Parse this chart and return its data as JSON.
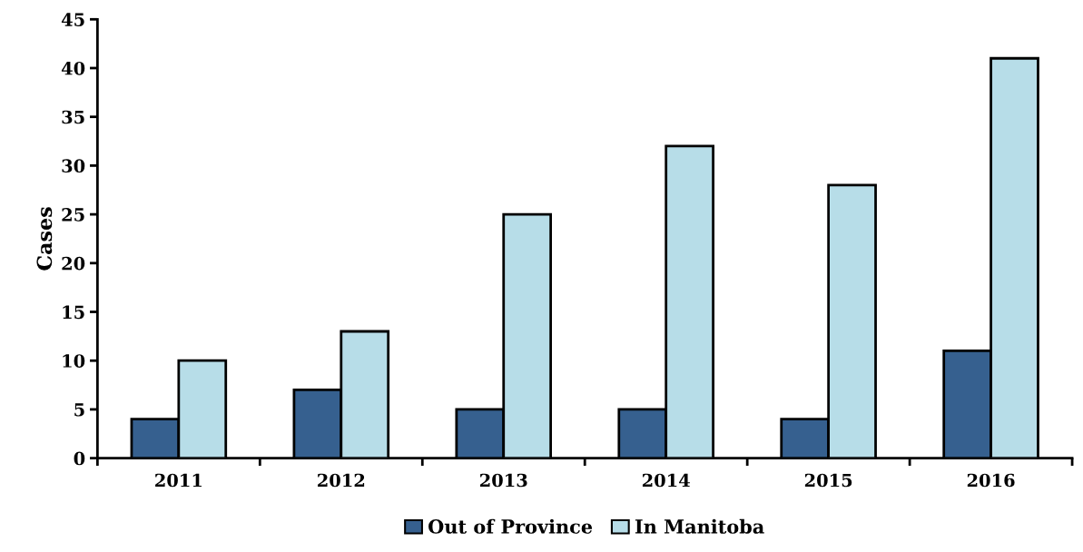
{
  "chart_data": {
    "type": "bar",
    "ylabel": "Cases",
    "categories": [
      "2011",
      "2012",
      "2013",
      "2014",
      "2015",
      "2016"
    ],
    "series": [
      {
        "name": "Out of Province",
        "color": "#36608f",
        "values": [
          4,
          7,
          5,
          5,
          4,
          11
        ]
      },
      {
        "name": "In Manitoba",
        "color": "#b7dde8",
        "values": [
          10,
          13,
          25,
          32,
          28,
          41
        ]
      }
    ],
    "ylim": [
      0,
      45
    ],
    "yticks": [
      0,
      5,
      10,
      15,
      20,
      25,
      30,
      35,
      40,
      45
    ],
    "grid": false,
    "legend": "bottom"
  }
}
